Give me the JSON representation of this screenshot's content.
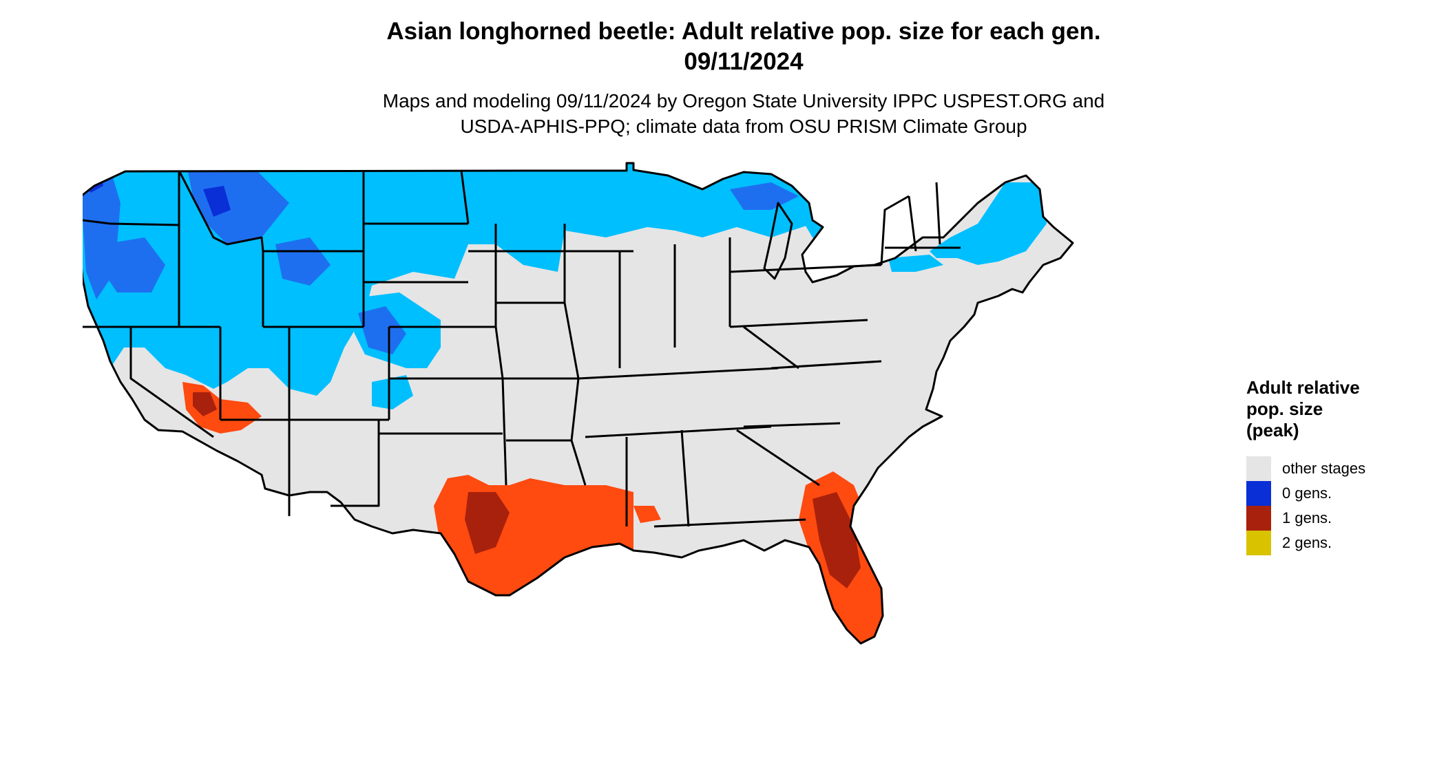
{
  "title": {
    "line1": "Asian longhorned beetle: Adult relative pop. size for each gen.",
    "line2": "09/11/2024"
  },
  "subtitle": {
    "line1": "Maps and modeling 09/11/2024 by Oregon State University IPPC USPEST.ORG and",
    "line2": "USDA-APHIS-PPQ; climate data from OSU PRISM Climate Group"
  },
  "legend": {
    "title_line1": "Adult relative",
    "title_line2": "pop. size",
    "title_line3": "(peak)",
    "items": [
      {
        "label": "other stages",
        "color": "#e5e5e5"
      },
      {
        "label": "0 gens.",
        "color": "#0a2fd6"
      },
      {
        "label": "1 gens.",
        "color": "#a8210c"
      },
      {
        "label": "2 gens.",
        "color": "#d9c200"
      }
    ]
  },
  "map": {
    "region": "contiguous United States",
    "colors": {
      "land_other": "#e5e5e5",
      "zero_gens_light": "#00bfff",
      "zero_gens_mid": "#1e6ff0",
      "zero_gens_dark": "#0a2fd6",
      "one_gen_light": "#ff4a10",
      "one_gen_dark": "#a8210c",
      "border": "#000000"
    }
  }
}
